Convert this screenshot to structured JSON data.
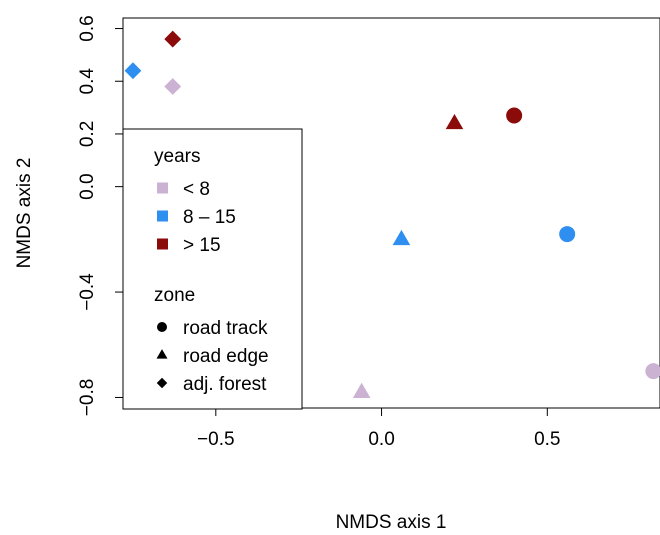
{
  "chart_data": {
    "type": "scatter",
    "xlabel": "NMDS axis 1",
    "ylabel": "NMDS axis 2",
    "xlim": [
      -0.78,
      0.84
    ],
    "ylim": [
      -0.84,
      0.64
    ],
    "x_ticks": [
      -0.5,
      0.0,
      0.5
    ],
    "x_tick_labels": [
      "−0.5",
      "0.0",
      "0.5"
    ],
    "y_ticks": [
      -0.8,
      -0.4,
      0.0,
      0.2,
      0.4,
      0.6
    ],
    "y_tick_labels": [
      "−0.8",
      "−0.4",
      "0.0",
      "0.2",
      "0.4",
      "0.6"
    ],
    "grid": false,
    "legend_position": "left",
    "legend": {
      "years_title": "years",
      "years": [
        {
          "label": "< 8",
          "color": "#CBB2D2"
        },
        {
          "label": "8 – 15",
          "color": "#2E8FF0"
        },
        {
          "label": "> 15",
          "color": "#8B0A0A"
        }
      ],
      "zone_title": "zone",
      "zones": [
        {
          "label": "road track",
          "shape": "circle"
        },
        {
          "label": "road edge",
          "shape": "triangle"
        },
        {
          "label": "adj. forest",
          "shape": "diamond"
        }
      ]
    },
    "points": [
      {
        "x": -0.75,
        "y": 0.44,
        "zone": "adj. forest",
        "years": "8 – 15"
      },
      {
        "x": -0.63,
        "y": 0.56,
        "zone": "adj. forest",
        "years": "> 15"
      },
      {
        "x": -0.63,
        "y": 0.38,
        "zone": "adj. forest",
        "years": "< 8"
      },
      {
        "x": 0.22,
        "y": 0.24,
        "zone": "road edge",
        "years": "> 15"
      },
      {
        "x": 0.4,
        "y": 0.27,
        "zone": "road track",
        "years": "> 15"
      },
      {
        "x": 0.06,
        "y": -0.2,
        "zone": "road edge",
        "years": "8 – 15"
      },
      {
        "x": 0.56,
        "y": -0.18,
        "zone": "road track",
        "years": "8 – 15"
      },
      {
        "x": -0.06,
        "y": -0.78,
        "zone": "road edge",
        "years": "< 8"
      },
      {
        "x": 0.82,
        "y": -0.7,
        "zone": "road track",
        "years": "< 8"
      }
    ]
  }
}
